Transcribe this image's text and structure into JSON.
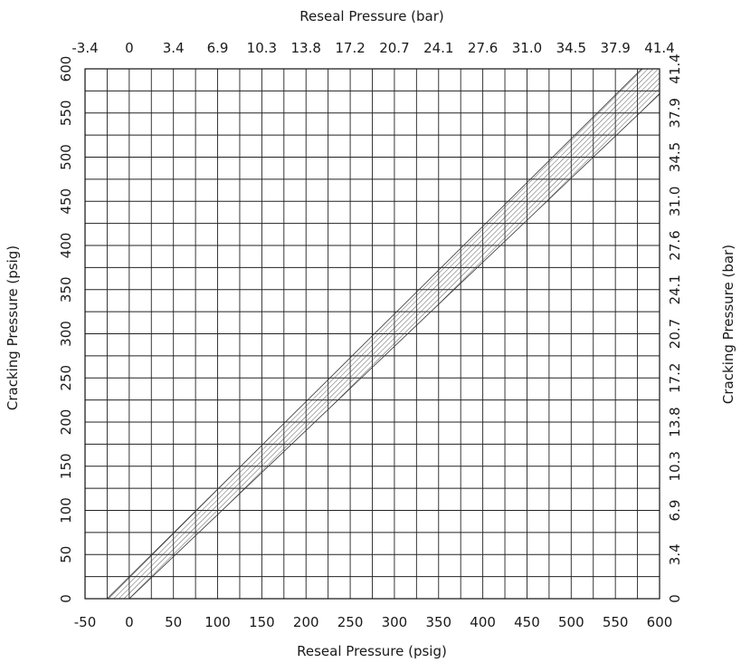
{
  "chart_data": {
    "type": "area",
    "title": "",
    "xlabel": "Reseal Pressure (psig)",
    "ylabel": "Cracking Pressure (psig)",
    "x2label": "Reseal Pressure (bar)",
    "y2label": "Cracking Pressure (bar)",
    "xlim": [
      -50,
      600
    ],
    "ylim": [
      0,
      600
    ],
    "x_ticks": [
      "-50",
      "0",
      "50",
      "100",
      "150",
      "200",
      "250",
      "300",
      "350",
      "400",
      "450",
      "500",
      "550",
      "600"
    ],
    "y_ticks": [
      "0",
      "50",
      "100",
      "150",
      "200",
      "250",
      "300",
      "350",
      "400",
      "450",
      "500",
      "550",
      "600"
    ],
    "x2_ticks": [
      "-3.4",
      "0",
      "3.4",
      "6.9",
      "10.3",
      "13.8",
      "17.2",
      "20.7",
      "24.1",
      "27.6",
      "31.0",
      "34.5",
      "37.9",
      "41.4"
    ],
    "y2_ticks": [
      "0",
      "3.4",
      "6.9",
      "10.3",
      "13.8",
      "17.2",
      "20.7",
      "24.1",
      "27.6",
      "31.0",
      "34.5",
      "37.9",
      "41.4"
    ],
    "grid": true,
    "grid_minor_step": 25,
    "series": [
      {
        "fill": "hatched",
        "upper_edge": [
          [
            -25,
            0
          ],
          [
            600,
            620
          ]
        ],
        "lower_edge": [
          [
            0,
            0
          ],
          [
            630,
            600
          ]
        ]
      }
    ]
  }
}
